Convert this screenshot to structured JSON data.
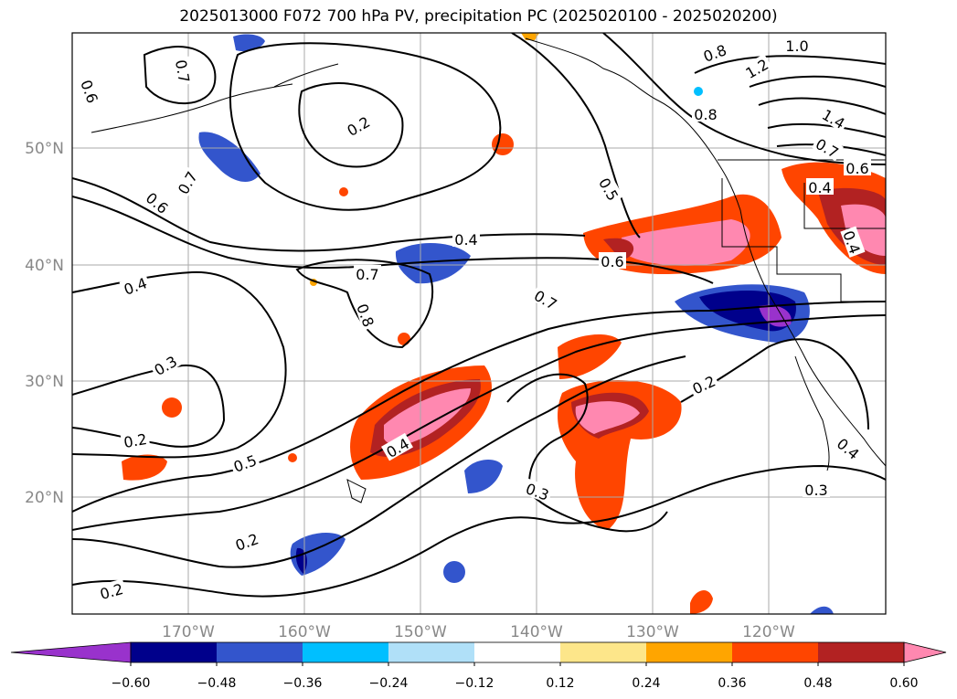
{
  "title": "2025013000 F072 700 hPa PV, precipitation PC (2025020100 - 2025020200)",
  "map": {
    "lat_labels": [
      "50°N",
      "40°N",
      "30°N",
      "20°N"
    ],
    "lon_labels": [
      "170°W",
      "160°W",
      "150°W",
      "140°W",
      "130°W",
      "120°W"
    ],
    "contour_labels": [
      "0.6",
      "0.7",
      "0.2",
      "0.8",
      "1.0",
      "1.2",
      "1.4",
      "0.8",
      "0.7",
      "0.6",
      "0.5",
      "0.4",
      "0.7",
      "0.6",
      "0.4",
      "0.6",
      "0.4",
      "0.8",
      "0.7",
      "0.7",
      "0.4",
      "0.3",
      "0.2",
      "0.5",
      "0.4",
      "0.2",
      "0.3",
      "0.2",
      "0.2",
      "0.3",
      "0.4"
    ]
  },
  "colorbar": {
    "ticks": [
      "−0.60",
      "−0.48",
      "−0.36",
      "−0.24",
      "−0.12",
      "0.12",
      "0.24",
      "0.36",
      "0.48",
      "0.60"
    ],
    "colors": [
      "#9932cc",
      "#00008b",
      "#3355cc",
      "#00bfff",
      "#b0e0f8",
      "#ffffff",
      "#fde68a",
      "#ffa500",
      "#ff4500",
      "#b22222",
      "#ff88b0"
    ]
  }
}
